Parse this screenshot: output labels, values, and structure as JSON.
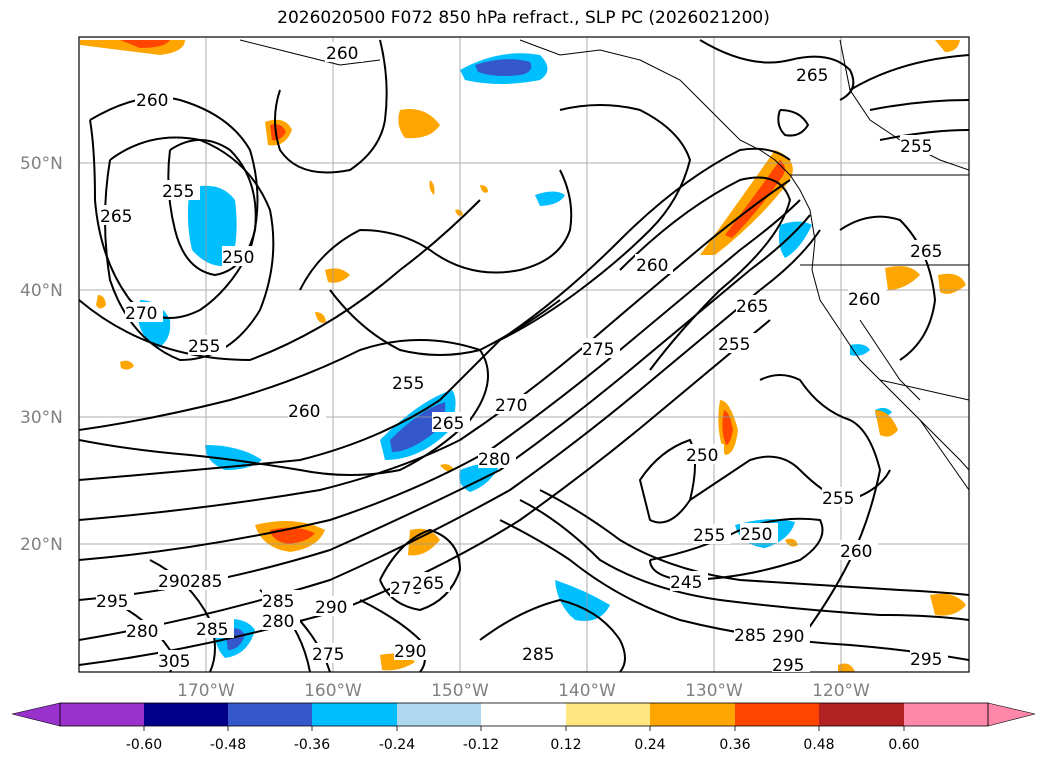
{
  "title": "2026020500 F072 850 hPa refract., SLP PC (2026021200)",
  "map": {
    "lat_ticks": [
      "50°N",
      "40°N",
      "30°N",
      "20°N"
    ],
    "lon_ticks": [
      "170°W",
      "160°W",
      "150°W",
      "140°W",
      "130°W",
      "120°W"
    ],
    "contour_labels": [
      "260",
      "260",
      "265",
      "255",
      "265",
      "250",
      "270",
      "255",
      "255",
      "260",
      "260",
      "255",
      "265",
      "270",
      "280",
      "275",
      "265",
      "250",
      "255",
      "250",
      "245",
      "255",
      "260",
      "265",
      "260",
      "255",
      "295",
      "290",
      "285",
      "280",
      "285",
      "305",
      "280",
      "285",
      "290",
      "275",
      "270",
      "265",
      "290",
      "285",
      "285",
      "290",
      "295",
      "295"
    ]
  },
  "colorbar": {
    "ticks": [
      "-0.60",
      "-0.48",
      "-0.36",
      "-0.24",
      "-0.12",
      "0.12",
      "0.24",
      "0.36",
      "0.48",
      "0.60"
    ],
    "colors": [
      "#9932cc",
      "#00008b",
      "#3458cc",
      "#00bfff",
      "#add8f0",
      "#ffffff",
      "#ffe680",
      "#ffa500",
      "#ff4500",
      "#b22222",
      "#ff88aa"
    ]
  }
}
